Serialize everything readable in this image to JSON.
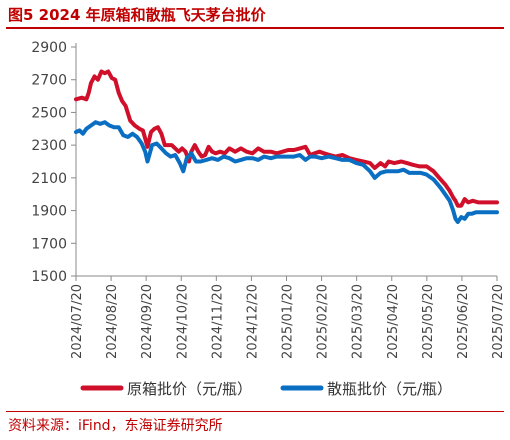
{
  "header": {
    "title": "图5  2024 年原箱和散瓶飞天茅台批价"
  },
  "footer": {
    "source": "资料来源：iFind，东海证券研究所"
  },
  "colors": {
    "original_box": "#d0102a",
    "loose_bottle": "#0a6fc2",
    "accent": "#c00000"
  },
  "chart_data": {
    "type": "line",
    "title": "",
    "xlabel": "",
    "ylabel": "",
    "ylim": [
      1500,
      2900
    ],
    "yticks": [
      1500,
      1700,
      1900,
      2100,
      2300,
      2500,
      2700,
      2900
    ],
    "xlim": [
      "2024-07-20",
      "2025-07-20"
    ],
    "xtick_labels": [
      "2024/07/20",
      "2024/08/20",
      "2024/09/20",
      "2024/10/20",
      "2024/11/20",
      "2024/12/20",
      "2025/01/20",
      "2025/02/20",
      "2025/03/20",
      "2025/04/20",
      "2025/05/20",
      "2025/06/20",
      "2025/07/20"
    ],
    "grid": false,
    "legend": "bottom",
    "series": [
      {
        "name": "原箱批价（元/瓶）",
        "color": "#d0102a",
        "points": [
          [
            "2024-07-20",
            2580
          ],
          [
            "2024-07-25",
            2590
          ],
          [
            "2024-07-29",
            2580
          ],
          [
            "2024-07-31",
            2620
          ],
          [
            "2024-08-02",
            2680
          ],
          [
            "2024-08-05",
            2720
          ],
          [
            "2024-08-08",
            2700
          ],
          [
            "2024-08-11",
            2750
          ],
          [
            "2024-08-14",
            2740
          ],
          [
            "2024-08-17",
            2750
          ],
          [
            "2024-08-20",
            2710
          ],
          [
            "2024-08-23",
            2700
          ],
          [
            "2024-08-26",
            2620
          ],
          [
            "2024-08-29",
            2570
          ],
          [
            "2024-09-01",
            2540
          ],
          [
            "2024-09-05",
            2450
          ],
          [
            "2024-09-09",
            2420
          ],
          [
            "2024-09-13",
            2400
          ],
          [
            "2024-09-16",
            2390
          ],
          [
            "2024-09-18",
            2340
          ],
          [
            "2024-09-20",
            2290
          ],
          [
            "2024-09-23",
            2380
          ],
          [
            "2024-09-26",
            2400
          ],
          [
            "2024-09-29",
            2410
          ],
          [
            "2024-10-02",
            2370
          ],
          [
            "2024-10-05",
            2300
          ],
          [
            "2024-10-08",
            2300
          ],
          [
            "2024-10-11",
            2300
          ],
          [
            "2024-10-14",
            2280
          ],
          [
            "2024-10-17",
            2260
          ],
          [
            "2024-10-20",
            2280
          ],
          [
            "2024-10-23",
            2260
          ],
          [
            "2024-10-26",
            2200
          ],
          [
            "2024-10-28",
            2260
          ],
          [
            "2024-10-31",
            2300
          ],
          [
            "2024-11-03",
            2260
          ],
          [
            "2024-11-06",
            2230
          ],
          [
            "2024-11-09",
            2240
          ],
          [
            "2024-11-12",
            2290
          ],
          [
            "2024-11-15",
            2260
          ],
          [
            "2024-11-18",
            2250
          ],
          [
            "2024-11-22",
            2260
          ],
          [
            "2024-11-26",
            2250
          ],
          [
            "2024-11-30",
            2280
          ],
          [
            "2024-12-05",
            2260
          ],
          [
            "2024-12-10",
            2280
          ],
          [
            "2024-12-15",
            2260
          ],
          [
            "2024-12-20",
            2250
          ],
          [
            "2024-12-25",
            2280
          ],
          [
            "2024-12-30",
            2260
          ],
          [
            "2025-01-05",
            2260
          ],
          [
            "2025-01-10",
            2250
          ],
          [
            "2025-01-15",
            2260
          ],
          [
            "2025-01-20",
            2270
          ],
          [
            "2025-01-25",
            2270
          ],
          [
            "2025-01-30",
            2280
          ],
          [
            "2025-02-04",
            2290
          ],
          [
            "2025-02-08",
            2240
          ],
          [
            "2025-02-12",
            2250
          ],
          [
            "2025-02-16",
            2260
          ],
          [
            "2025-02-20",
            2250
          ],
          [
            "2025-02-25",
            2240
          ],
          [
            "2025-03-02",
            2230
          ],
          [
            "2025-03-08",
            2240
          ],
          [
            "2025-03-14",
            2220
          ],
          [
            "2025-03-20",
            2210
          ],
          [
            "2025-03-26",
            2200
          ],
          [
            "2025-04-01",
            2190
          ],
          [
            "2025-04-05",
            2160
          ],
          [
            "2025-04-10",
            2190
          ],
          [
            "2025-04-14",
            2170
          ],
          [
            "2025-04-17",
            2200
          ],
          [
            "2025-04-22",
            2190
          ],
          [
            "2025-04-28",
            2200
          ],
          [
            "2025-05-03",
            2190
          ],
          [
            "2025-05-08",
            2180
          ],
          [
            "2025-05-14",
            2170
          ],
          [
            "2025-05-20",
            2170
          ],
          [
            "2025-05-26",
            2140
          ],
          [
            "2025-05-31",
            2100
          ],
          [
            "2025-06-05",
            2060
          ],
          [
            "2025-06-09",
            2020
          ],
          [
            "2025-06-12",
            1980
          ],
          [
            "2025-06-14",
            1960
          ],
          [
            "2025-06-16",
            1930
          ],
          [
            "2025-06-19",
            1930
          ],
          [
            "2025-06-22",
            1970
          ],
          [
            "2025-06-25",
            1950
          ],
          [
            "2025-06-29",
            1960
          ],
          [
            "2025-07-04",
            1950
          ],
          [
            "2025-07-10",
            1950
          ],
          [
            "2025-07-20",
            1950
          ]
        ]
      },
      {
        "name": "散瓶批价（元/瓶）",
        "color": "#0a6fc2",
        "points": [
          [
            "2024-07-20",
            2380
          ],
          [
            "2024-07-23",
            2390
          ],
          [
            "2024-07-26",
            2370
          ],
          [
            "2024-07-29",
            2400
          ],
          [
            "2024-08-02",
            2420
          ],
          [
            "2024-08-06",
            2440
          ],
          [
            "2024-08-10",
            2430
          ],
          [
            "2024-08-14",
            2440
          ],
          [
            "2024-08-18",
            2420
          ],
          [
            "2024-08-22",
            2410
          ],
          [
            "2024-08-26",
            2410
          ],
          [
            "2024-08-30",
            2360
          ],
          [
            "2024-09-03",
            2350
          ],
          [
            "2024-09-07",
            2370
          ],
          [
            "2024-09-11",
            2350
          ],
          [
            "2024-09-15",
            2310
          ],
          [
            "2024-09-18",
            2260
          ],
          [
            "2024-09-20",
            2200
          ],
          [
            "2024-09-24",
            2300
          ],
          [
            "2024-09-28",
            2310
          ],
          [
            "2024-10-02",
            2280
          ],
          [
            "2024-10-06",
            2250
          ],
          [
            "2024-10-10",
            2230
          ],
          [
            "2024-10-14",
            2240
          ],
          [
            "2024-10-18",
            2190
          ],
          [
            "2024-10-21",
            2140
          ],
          [
            "2024-10-24",
            2220
          ],
          [
            "2024-10-28",
            2250
          ],
          [
            "2024-11-01",
            2200
          ],
          [
            "2024-11-05",
            2200
          ],
          [
            "2024-11-10",
            2210
          ],
          [
            "2024-11-15",
            2220
          ],
          [
            "2024-11-20",
            2210
          ],
          [
            "2024-11-25",
            2230
          ],
          [
            "2024-11-30",
            2220
          ],
          [
            "2024-12-05",
            2200
          ],
          [
            "2024-12-10",
            2210
          ],
          [
            "2024-12-15",
            2220
          ],
          [
            "2024-12-20",
            2220
          ],
          [
            "2024-12-25",
            2210
          ],
          [
            "2024-12-30",
            2230
          ],
          [
            "2025-01-05",
            2220
          ],
          [
            "2025-01-10",
            2230
          ],
          [
            "2025-01-15",
            2230
          ],
          [
            "2025-01-20",
            2230
          ],
          [
            "2025-01-25",
            2230
          ],
          [
            "2025-01-30",
            2240
          ],
          [
            "2025-02-04",
            2210
          ],
          [
            "2025-02-08",
            2230
          ],
          [
            "2025-02-12",
            2230
          ],
          [
            "2025-02-18",
            2220
          ],
          [
            "2025-02-24",
            2230
          ],
          [
            "2025-03-02",
            2220
          ],
          [
            "2025-03-08",
            2210
          ],
          [
            "2025-03-14",
            2210
          ],
          [
            "2025-03-20",
            2190
          ],
          [
            "2025-03-26",
            2180
          ],
          [
            "2025-04-01",
            2140
          ],
          [
            "2025-04-05",
            2100
          ],
          [
            "2025-04-10",
            2130
          ],
          [
            "2025-04-15",
            2140
          ],
          [
            "2025-04-20",
            2140
          ],
          [
            "2025-04-25",
            2140
          ],
          [
            "2025-04-30",
            2150
          ],
          [
            "2025-05-05",
            2130
          ],
          [
            "2025-05-10",
            2130
          ],
          [
            "2025-05-15",
            2130
          ],
          [
            "2025-05-20",
            2120
          ],
          [
            "2025-05-26",
            2090
          ],
          [
            "2025-06-01",
            2040
          ],
          [
            "2025-06-05",
            2000
          ],
          [
            "2025-06-09",
            1960
          ],
          [
            "2025-06-12",
            1900
          ],
          [
            "2025-06-14",
            1850
          ],
          [
            "2025-06-16",
            1830
          ],
          [
            "2025-06-19",
            1860
          ],
          [
            "2025-06-22",
            1850
          ],
          [
            "2025-06-25",
            1880
          ],
          [
            "2025-06-28",
            1880
          ],
          [
            "2025-07-02",
            1890
          ],
          [
            "2025-07-10",
            1890
          ],
          [
            "2025-07-20",
            1890
          ]
        ]
      }
    ]
  }
}
